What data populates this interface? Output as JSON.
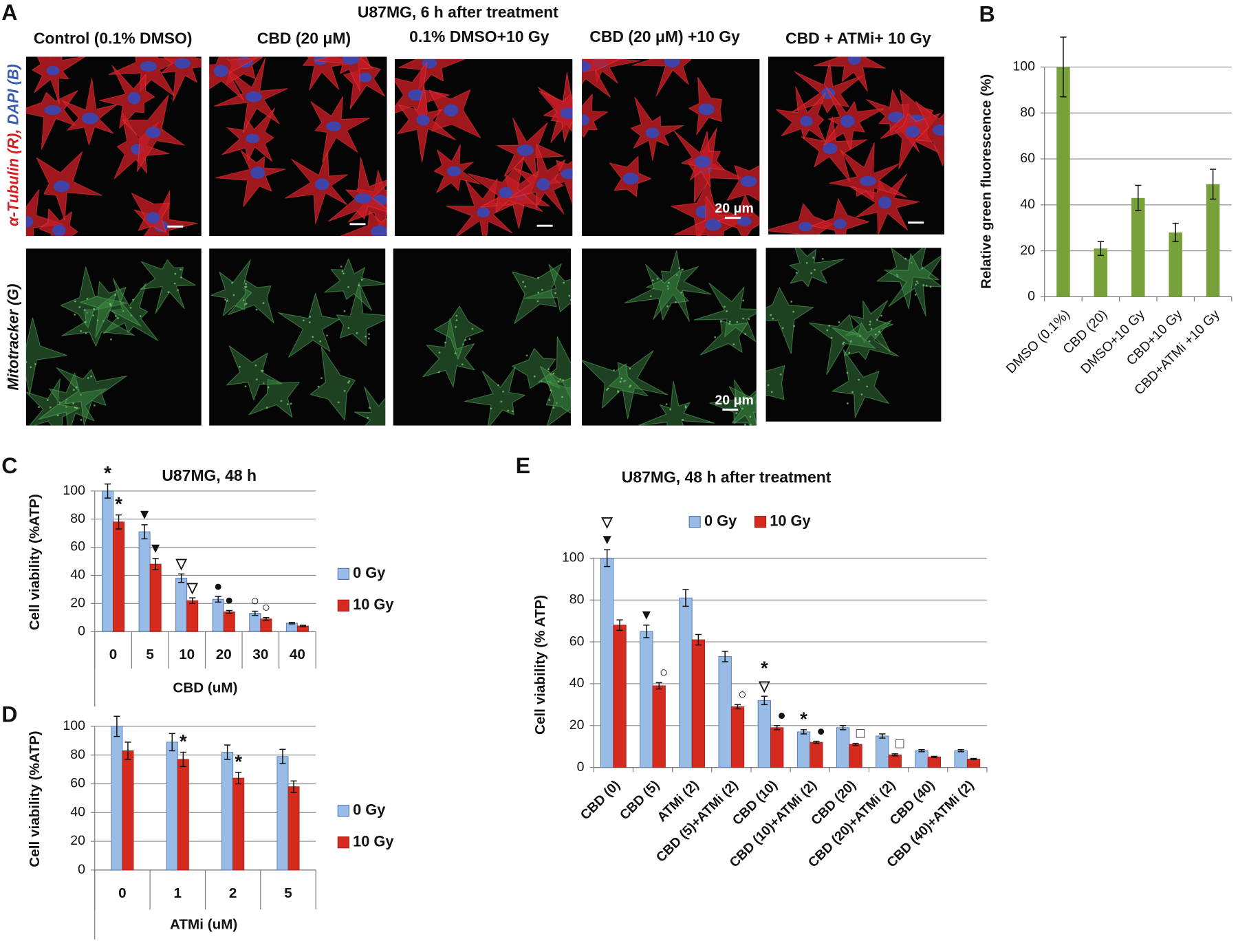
{
  "panel_a": {
    "panel": "A",
    "title": "U87MG, 6  h after treatment",
    "column_titles": [
      "Control (0.1% DMSO)",
      "CBD (20 μM)",
      "0.1% DMSO+10 Gy",
      "CBD (20 μM) +10 Gy",
      "CBD + ATMi+ 10 Gy"
    ],
    "row_labels": [
      "α-Tubulin (R),",
      "DAPI (B)",
      "Mitotracker (G)"
    ],
    "scale_bar_labels": [
      "20 μm",
      "20 μm"
    ]
  },
  "chart_data": [
    {
      "type": "bar",
      "panel": "B",
      "ylabel": "Relative green fluorescence  (%)",
      "categories": [
        "DMSO (0.1%)",
        "CBD (20)",
        "DMSO+10 Gy",
        "CBD+10 Gy",
        "CBD+ATMi +10 Gy"
      ],
      "values": [
        100,
        21,
        43,
        28,
        49
      ],
      "errors": [
        13,
        3,
        5.5,
        4,
        6.5
      ],
      "color": "#78a13b",
      "ylim": [
        0,
        100
      ],
      "yticks": [
        0,
        20,
        40,
        60,
        80,
        100
      ],
      "grid": true
    },
    {
      "type": "bar",
      "panel": "C",
      "title": "U87MG,  48 h",
      "xlabel": "CBD (uM)",
      "ylabel": "Cell viability (%ATP)",
      "categories": [
        "0",
        "5",
        "10",
        "20",
        "30",
        "40"
      ],
      "series": [
        {
          "name": "0 Gy",
          "color": "#98bce6",
          "values": [
            100,
            71,
            38,
            23,
            13,
            6
          ],
          "errors": [
            5,
            5,
            3,
            2,
            1.5,
            0.5
          ],
          "markers": [
            "*",
            "▼",
            "▽",
            "●",
            "○",
            null
          ]
        },
        {
          "name": "10 Gy",
          "color": "#d52b1e",
          "values": [
            78,
            48,
            22,
            14,
            9,
            4
          ],
          "errors": [
            5,
            4,
            2,
            1,
            1,
            0.5
          ],
          "markers": [
            "*",
            "▼",
            "▽",
            "●",
            "○",
            null
          ]
        }
      ],
      "ylim": [
        0,
        100
      ],
      "yticks": [
        0,
        20,
        40,
        60,
        80,
        100
      ],
      "grid": true,
      "legend": "right"
    },
    {
      "type": "bar",
      "panel": "D",
      "xlabel": "ATMi (uM)",
      "ylabel": "Cell viability (%ATP)",
      "categories": [
        "0",
        "1",
        "2",
        "5"
      ],
      "series": [
        {
          "name": "0 Gy",
          "color": "#98bce6",
          "values": [
            100,
            89,
            82,
            79
          ],
          "errors": [
            7,
            6,
            5,
            5
          ]
        },
        {
          "name": "10 Gy",
          "color": "#d52b1e",
          "values": [
            83,
            77,
            64,
            58
          ],
          "errors": [
            6,
            5,
            4,
            4
          ],
          "markers": [
            null,
            "*",
            "*",
            null
          ]
        }
      ],
      "ylim": [
        0,
        100
      ],
      "yticks": [
        0,
        20,
        40,
        60,
        80,
        100
      ],
      "grid": true,
      "legend": "right"
    },
    {
      "type": "bar",
      "panel": "E",
      "title": "U87MG, 48 h after treatment",
      "ylabel": "Cell viability (% ATP)",
      "categories": [
        "CBD (0)",
        "CBD (5)",
        "ATMi (2)",
        "CBD (5)+ATMi (2)",
        "CBD (10)",
        "CBD (10)+ATMi (2)",
        "CBD (20)",
        "CBD (20)+ATMi (2)",
        "CBD (40)",
        "CBD (40)+ATMi (2)"
      ],
      "series": [
        {
          "name": "0 Gy",
          "color": "#98bce6",
          "values": [
            100,
            65,
            81,
            53,
            32,
            17,
            19,
            15,
            8,
            8
          ],
          "errors": [
            4,
            3,
            4,
            2.5,
            2,
            1,
            1,
            1,
            0.5,
            0.5
          ],
          "markers": [
            [
              "▽",
              "▼"
            ],
            "▼",
            null,
            null,
            [
              "*",
              "▽"
            ],
            "*",
            null,
            null,
            null,
            null
          ]
        },
        {
          "name": "10 Gy",
          "color": "#d52b1e",
          "values": [
            68,
            39,
            61,
            29,
            19,
            12,
            11,
            6,
            5,
            4
          ],
          "errors": [
            2.5,
            1.5,
            2.5,
            1,
            1,
            0.5,
            0.5,
            0.5,
            0.3,
            0.3
          ],
          "markers": [
            null,
            "○",
            null,
            "○",
            "●",
            "●",
            "□",
            "□",
            null,
            null
          ]
        }
      ],
      "ylim": [
        0,
        100
      ],
      "yticks": [
        0,
        20,
        40,
        60,
        80,
        100
      ],
      "grid": true,
      "legend": "top"
    }
  ]
}
